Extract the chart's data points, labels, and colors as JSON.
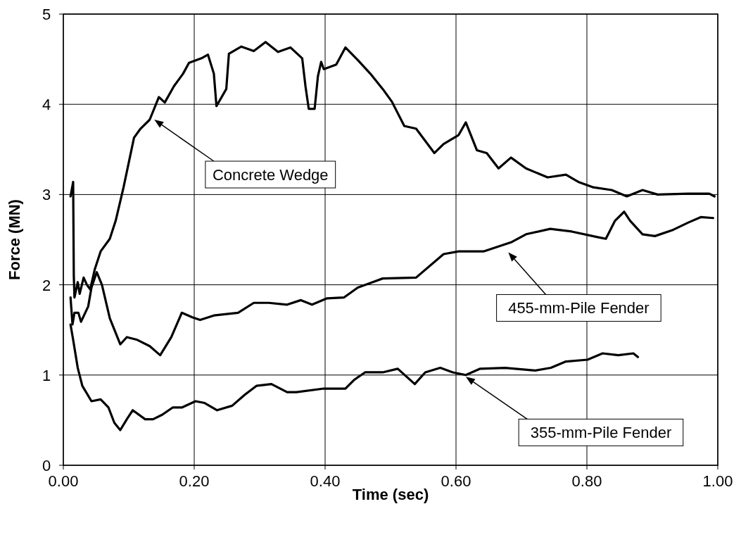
{
  "chart_data": {
    "type": "line",
    "xlabel": "Time (sec)",
    "ylabel": "Force (MN)",
    "xlim": [
      0,
      1
    ],
    "xticks": [
      {
        "value": 0,
        "label": "0.00"
      },
      {
        "value": 0.2,
        "label": "0.20"
      },
      {
        "value": 0.4,
        "label": "0.40"
      },
      {
        "value": 0.6,
        "label": "0.60"
      },
      {
        "value": 0.8,
        "label": "0.80"
      },
      {
        "value": 1,
        "label": "1.00"
      }
    ],
    "ylim": [
      0,
      5
    ],
    "yticks": [
      0,
      1,
      2,
      3,
      4,
      5
    ],
    "grid": true,
    "marker": "none",
    "line_style": "solid",
    "series": [
      {
        "color": "#000000",
        "x": [
          0.011,
          0.015,
          0.016,
          0.017,
          0.022,
          0.025,
          0.031,
          0.036,
          0.041,
          0.048,
          0.057,
          0.071,
          0.08,
          0.092,
          0.108,
          0.118,
          0.132,
          0.146,
          0.155,
          0.169,
          0.183,
          0.192,
          0.211,
          0.221,
          0.23,
          0.234,
          0.249,
          0.253,
          0.272,
          0.291,
          0.309,
          0.328,
          0.347,
          0.365,
          0.37,
          0.375,
          0.384,
          0.389,
          0.394,
          0.398,
          0.417,
          0.431,
          0.45,
          0.469,
          0.488,
          0.502,
          0.521,
          0.539,
          0.567,
          0.581,
          0.604,
          0.615,
          0.632,
          0.647,
          0.665,
          0.684,
          0.707,
          0.74,
          0.768,
          0.787,
          0.81,
          0.838,
          0.861,
          0.885,
          0.908,
          0.955,
          0.987,
          0.995
        ],
        "values": [
          2.98,
          3.14,
          2.1,
          1.86,
          2.03,
          1.9,
          2.08,
          2.0,
          1.95,
          2.17,
          2.37,
          2.51,
          2.71,
          3.08,
          3.63,
          3.73,
          3.83,
          4.08,
          4.02,
          4.2,
          4.34,
          4.46,
          4.51,
          4.55,
          4.34,
          3.98,
          4.17,
          4.56,
          4.64,
          4.59,
          4.69,
          4.58,
          4.63,
          4.51,
          4.2,
          3.95,
          3.95,
          4.31,
          4.47,
          4.39,
          4.44,
          4.63,
          4.49,
          4.34,
          4.17,
          4.03,
          3.76,
          3.73,
          3.46,
          3.56,
          3.66,
          3.8,
          3.49,
          3.46,
          3.29,
          3.41,
          3.29,
          3.19,
          3.22,
          3.14,
          3.08,
          3.05,
          2.98,
          3.05,
          3.0,
          3.01,
          3.01,
          2.98
        ]
      },
      {
        "color": "#000000",
        "x": [
          0.011,
          0.014,
          0.017,
          0.023,
          0.027,
          0.038,
          0.043,
          0.051,
          0.059,
          0.071,
          0.087,
          0.097,
          0.113,
          0.132,
          0.148,
          0.165,
          0.181,
          0.197,
          0.209,
          0.23,
          0.267,
          0.291,
          0.314,
          0.342,
          0.363,
          0.38,
          0.403,
          0.429,
          0.45,
          0.473,
          0.488,
          0.539,
          0.581,
          0.604,
          0.642,
          0.684,
          0.707,
          0.744,
          0.777,
          0.815,
          0.829,
          0.843,
          0.857,
          0.866,
          0.885,
          0.904,
          0.932,
          0.955,
          0.974,
          0.993
        ],
        "values": [
          1.86,
          1.56,
          1.69,
          1.69,
          1.59,
          1.76,
          1.97,
          2.14,
          2.0,
          1.63,
          1.34,
          1.42,
          1.39,
          1.32,
          1.22,
          1.42,
          1.69,
          1.64,
          1.61,
          1.66,
          1.69,
          1.8,
          1.8,
          1.78,
          1.83,
          1.78,
          1.85,
          1.86,
          1.97,
          2.03,
          2.07,
          2.08,
          2.34,
          2.37,
          2.37,
          2.47,
          2.56,
          2.62,
          2.59,
          2.53,
          2.51,
          2.71,
          2.81,
          2.71,
          2.56,
          2.54,
          2.61,
          2.69,
          2.75,
          2.74
        ]
      },
      {
        "color": "#000000",
        "x": [
          0.011,
          0.015,
          0.022,
          0.029,
          0.043,
          0.057,
          0.069,
          0.078,
          0.087,
          0.097,
          0.106,
          0.125,
          0.137,
          0.151,
          0.167,
          0.181,
          0.202,
          0.216,
          0.235,
          0.258,
          0.277,
          0.295,
          0.318,
          0.342,
          0.356,
          0.398,
          0.431,
          0.445,
          0.461,
          0.488,
          0.511,
          0.537,
          0.553,
          0.576,
          0.595,
          0.615,
          0.637,
          0.675,
          0.721,
          0.745,
          0.768,
          0.801,
          0.824,
          0.848,
          0.871,
          0.878
        ],
        "values": [
          1.56,
          1.39,
          1.08,
          0.88,
          0.71,
          0.73,
          0.64,
          0.47,
          0.39,
          0.51,
          0.61,
          0.51,
          0.51,
          0.56,
          0.64,
          0.64,
          0.71,
          0.69,
          0.61,
          0.66,
          0.78,
          0.88,
          0.9,
          0.81,
          0.81,
          0.85,
          0.85,
          0.95,
          1.03,
          1.03,
          1.07,
          0.9,
          1.03,
          1.08,
          1.03,
          1.0,
          1.07,
          1.08,
          1.05,
          1.08,
          1.15,
          1.17,
          1.24,
          1.22,
          1.24,
          1.2
        ]
      }
    ],
    "annotations": [
      "Concrete Wedge",
      "455-mm-Pile Fender",
      "355-mm-Pile Fender"
    ]
  }
}
